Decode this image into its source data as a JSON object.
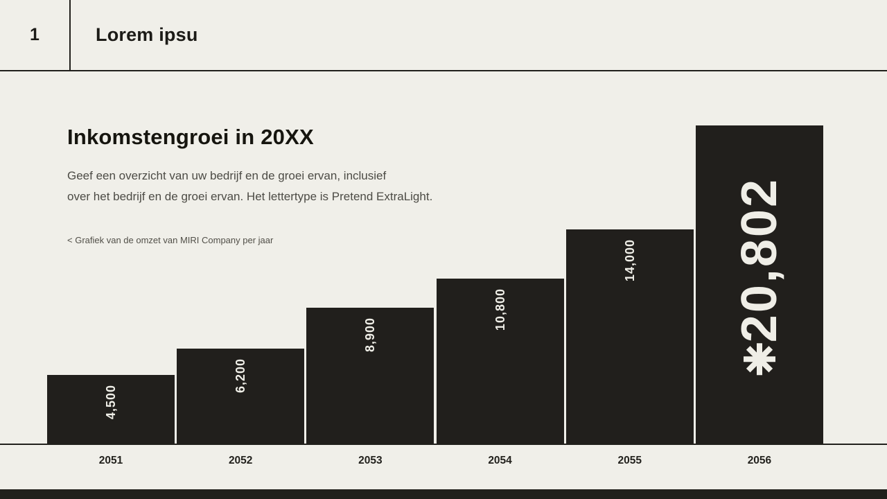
{
  "header": {
    "number": "1",
    "title": "Lorem ipsu"
  },
  "content": {
    "title": "Inkomstengroei in 20XX",
    "body_lines": [
      "Geef een overzicht van uw bedrijf en de groei ervan, inclusief",
      "over het bedrijf en de groei ervan. Het lettertype is Pretend ExtraLight."
    ],
    "caption": "< Grafiek van de omzet van MIRI Company per jaar"
  },
  "chart_data": {
    "type": "bar",
    "title": "Inkomstengroei in 20XX",
    "xlabel": "",
    "ylabel": "",
    "categories": [
      "2051",
      "2052",
      "2053",
      "2054",
      "2055",
      "2056"
    ],
    "values": [
      4500,
      6200,
      8900,
      10800,
      14000,
      20802
    ],
    "value_labels": [
      "4,500",
      "6,200",
      "8,900",
      "10,800",
      "14,000",
      "20,802"
    ],
    "highlight_index": 5,
    "highlight_symbol": "asterisk-star",
    "ylim": [
      0,
      20802
    ],
    "grid": false,
    "legend": false,
    "value_label_rotation": -90,
    "bar_color": "#211f1c",
    "label_color": "#efeee7",
    "background_color": "#f0efe9",
    "axis_color": "#21201c"
  }
}
